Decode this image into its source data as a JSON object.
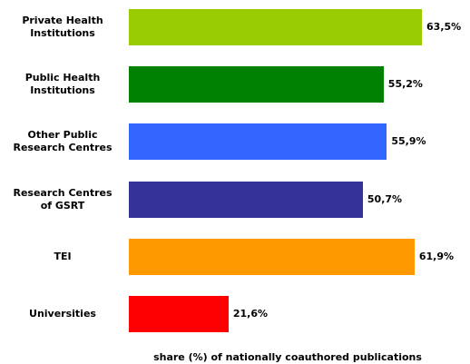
{
  "chart_data": {
    "type": "bar",
    "orientation": "horizontal",
    "x_axis_label": "share (%) of nationally coauthored publications",
    "categories": [
      "Private Health Institutions",
      "Public Health Institutions",
      "Other Public Research Centres",
      "Research Centres of GSRT",
      "TEI",
      "Universities"
    ],
    "values": [
      63.5,
      55.2,
      55.9,
      50.7,
      61.9,
      21.6
    ],
    "value_labels": [
      "63,5%",
      "55,2%",
      "55,9%",
      "50,7%",
      "61,9%",
      "21,6%"
    ],
    "colors": [
      "#99cc00",
      "#008000",
      "#3366ff",
      "#333399",
      "#ff9900",
      "#ff0000"
    ]
  }
}
